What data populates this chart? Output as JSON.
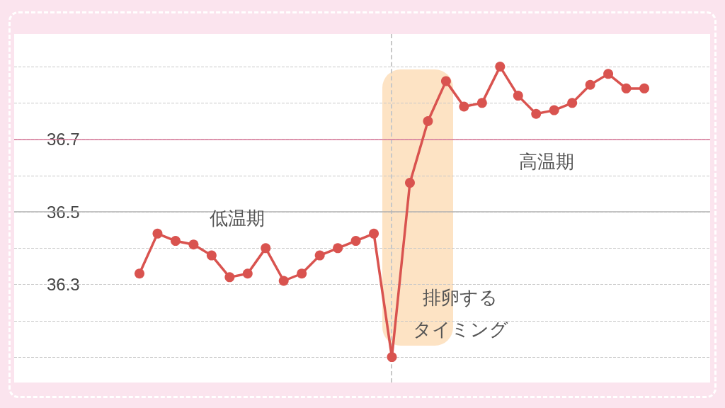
{
  "chart_data": {
    "type": "line",
    "categories": [
      null,
      null,
      null,
      null,
      null,
      null,
      null,
      null,
      null,
      null,
      null,
      null,
      null,
      null,
      null,
      null,
      null,
      null,
      null,
      null,
      null,
      null,
      null,
      null,
      null,
      null,
      null,
      null,
      null
    ],
    "series": [
      {
        "color": "#d9534f",
        "values": [
          36.33,
          36.44,
          36.42,
          36.41,
          36.38,
          36.32,
          36.33,
          36.4,
          36.31,
          36.33,
          36.38,
          36.4,
          36.42,
          36.44,
          36.1,
          36.58,
          36.75,
          36.86,
          36.79,
          36.8,
          36.9,
          36.82,
          36.77,
          36.78,
          36.8,
          36.85,
          36.88,
          36.84,
          36.84
        ]
      }
    ],
    "ylim": [
      36.03,
      36.99
    ],
    "yticks": [
      {
        "value": 36.1,
        "label": null
      },
      {
        "value": 36.2,
        "label": null
      },
      {
        "value": 36.3,
        "label": "36.3"
      },
      {
        "value": 36.4,
        "label": null
      },
      {
        "value": 36.5,
        "label": "36.5"
      },
      {
        "value": 36.6,
        "label": null
      },
      {
        "value": 36.7,
        "label": "36.7"
      },
      {
        "value": 36.8,
        "label": null
      },
      {
        "value": 36.9,
        "label": null
      }
    ],
    "tick_labels": "y",
    "grid": "y",
    "marker": "circle",
    "line_style": "solid",
    "ref_lines": [
      {
        "axis": "y",
        "value": 36.7,
        "color": "#d9789a"
      },
      {
        "axis": "y",
        "value": 36.5,
        "color": "#b0b0b0"
      }
    ],
    "annotations": [
      "低温期",
      "排卵する",
      "タイミング",
      "高温期"
    ]
  }
}
